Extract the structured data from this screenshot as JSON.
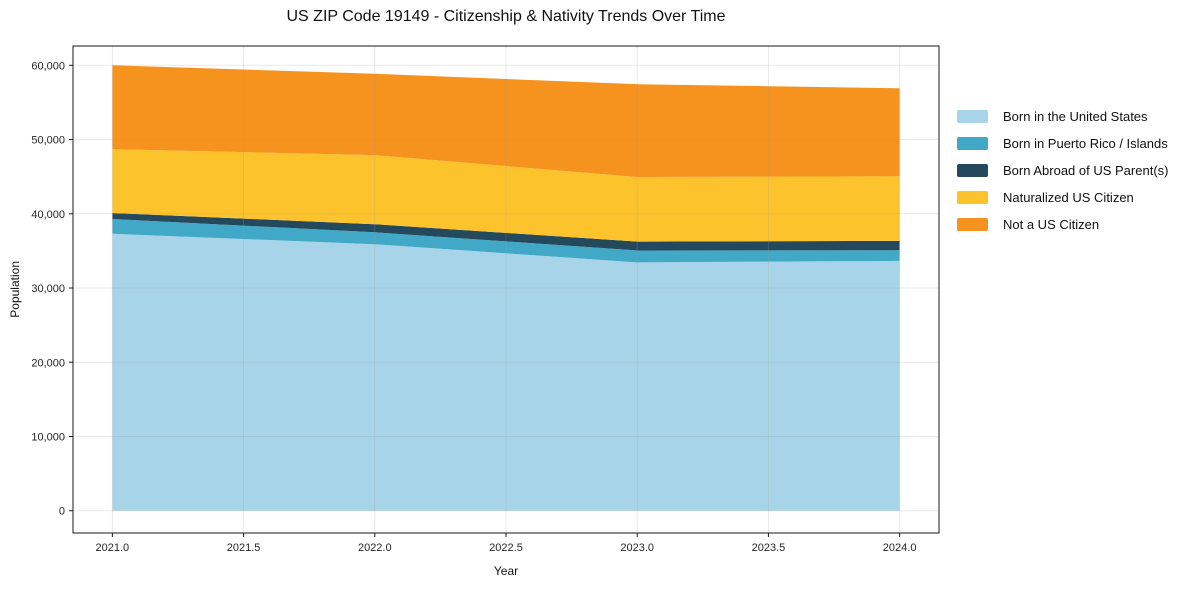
{
  "chart_data": {
    "type": "area",
    "stacked": true,
    "title": "US ZIP Code 19149 - Citizenship & Nativity Trends Over Time",
    "xlabel": "Year",
    "ylabel": "Population",
    "grid": true,
    "legend_position": "right-outside",
    "x": [
      2021,
      2022,
      2023,
      2024
    ],
    "series": [
      {
        "name": "Born in the United States",
        "color": "#a7d4e8",
        "values": [
          37300,
          35900,
          33450,
          33650
        ]
      },
      {
        "name": "Born in Puerto Rico / Islands",
        "color": "#41a9c7",
        "values": [
          2000,
          1600,
          1600,
          1450
        ]
      },
      {
        "name": "Born Abroad of US Parent(s)",
        "color": "#25495c",
        "values": [
          800,
          1100,
          1200,
          1250
        ]
      },
      {
        "name": "Naturalized US Citizen",
        "color": "#fcc32d",
        "values": [
          8600,
          9300,
          8700,
          8700
        ]
      },
      {
        "name": "Not a US Citizen",
        "color": "#f6921e",
        "values": [
          11300,
          10950,
          12500,
          11850
        ]
      }
    ],
    "stacked_totals": [
      60000,
      58850,
      57450,
      56900
    ],
    "xlim": [
      2020.85,
      2024.15
    ],
    "ylim": [
      -3000,
      62600
    ],
    "xticks": [
      {
        "v": 2021.0,
        "label": "2021.0"
      },
      {
        "v": 2021.5,
        "label": "2021.5"
      },
      {
        "v": 2022.0,
        "label": "2022.0"
      },
      {
        "v": 2022.5,
        "label": "2022.5"
      },
      {
        "v": 2023.0,
        "label": "2023.0"
      },
      {
        "v": 2023.5,
        "label": "2023.5"
      },
      {
        "v": 2024.0,
        "label": "2024.0"
      }
    ],
    "yticks": [
      {
        "v": 0,
        "label": "0"
      },
      {
        "v": 10000,
        "label": "10,000"
      },
      {
        "v": 20000,
        "label": "20,000"
      },
      {
        "v": 30000,
        "label": "30,000"
      },
      {
        "v": 40000,
        "label": "40,000"
      },
      {
        "v": 50000,
        "label": "50,000"
      },
      {
        "v": 60000,
        "label": "60,000"
      }
    ],
    "colors": {
      "spine": "#1a1a1a",
      "tick_label": "#262626",
      "grid": "#999999"
    }
  }
}
